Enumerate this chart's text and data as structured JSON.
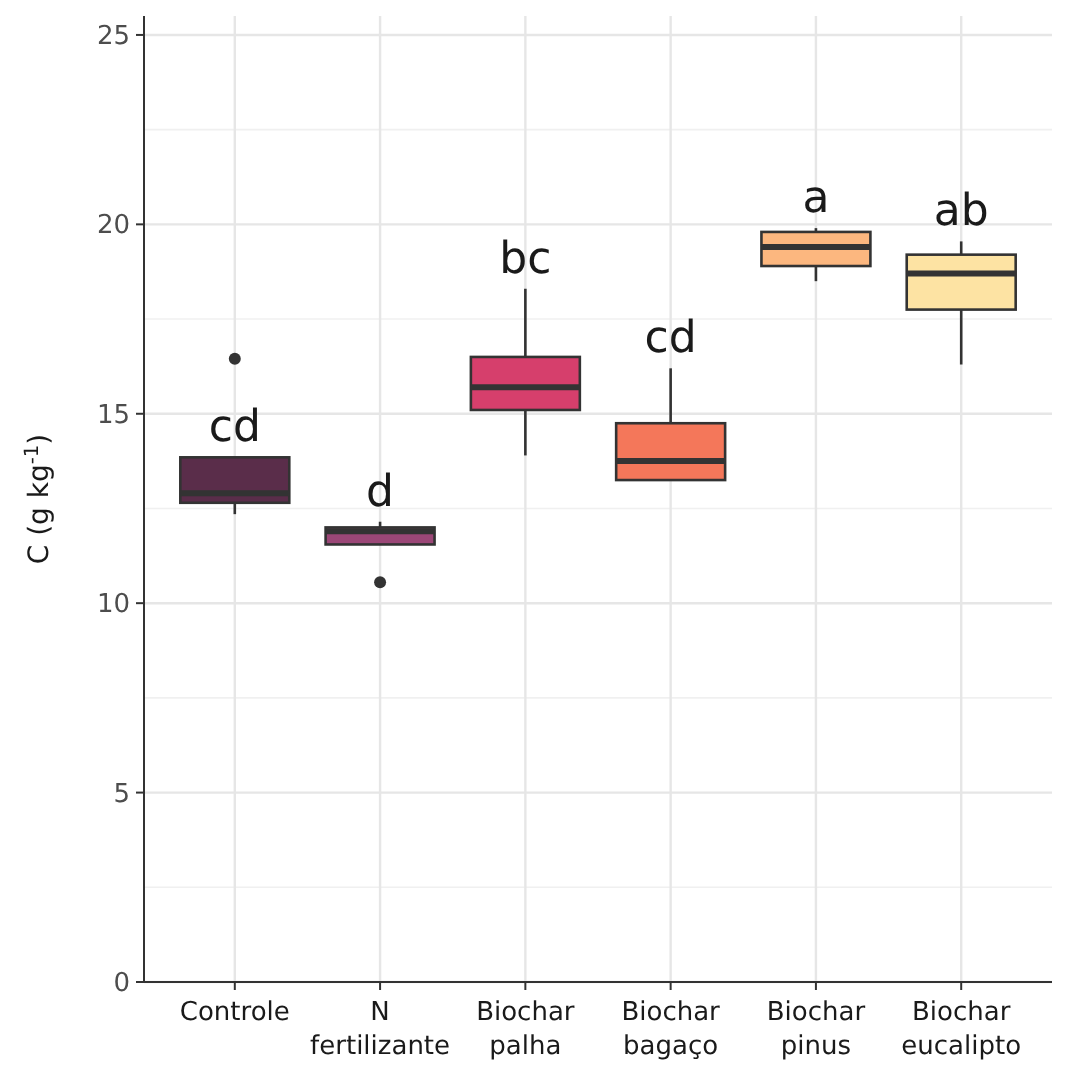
{
  "chart_data": {
    "type": "box",
    "ylabel": "C (g kg$^{-1}$)",
    "categories": [
      "Controle",
      "N fertilizante",
      "Biochar palha",
      "Biochar bagaço",
      "Biochar pinus",
      "Biochar eucalipto"
    ],
    "colors": [
      "#5a2d4a",
      "#9b4777",
      "#d63f6c",
      "#f4775a",
      "#fcb77f",
      "#fde3a3"
    ],
    "boxes": [
      {
        "low": 12.35,
        "q1": 12.65,
        "median": 12.9,
        "q3": 13.85,
        "high": 13.85,
        "outliers": [
          16.45
        ]
      },
      {
        "low": 11.55,
        "q1": 11.55,
        "median": 11.9,
        "q3": 12.0,
        "high": 12.15,
        "outliers": [
          10.55
        ]
      },
      {
        "low": 13.9,
        "q1": 15.1,
        "median": 15.7,
        "q3": 16.5,
        "high": 18.3
      },
      {
        "low": 13.25,
        "q1": 13.25,
        "median": 13.75,
        "q3": 14.75,
        "high": 16.2
      },
      {
        "low": 18.5,
        "q1": 18.9,
        "median": 19.4,
        "q3": 19.8,
        "high": 19.9
      },
      {
        "low": 16.3,
        "q1": 17.75,
        "median": 18.7,
        "q3": 19.2,
        "high": 19.55
      }
    ],
    "annotations": [
      "cd",
      "d",
      "bc",
      "cd",
      "a",
      "ab"
    ],
    "ylim": [
      0,
      25.5
    ],
    "yticks": [
      0,
      5,
      10,
      15,
      20,
      25
    ],
    "grid": true
  }
}
